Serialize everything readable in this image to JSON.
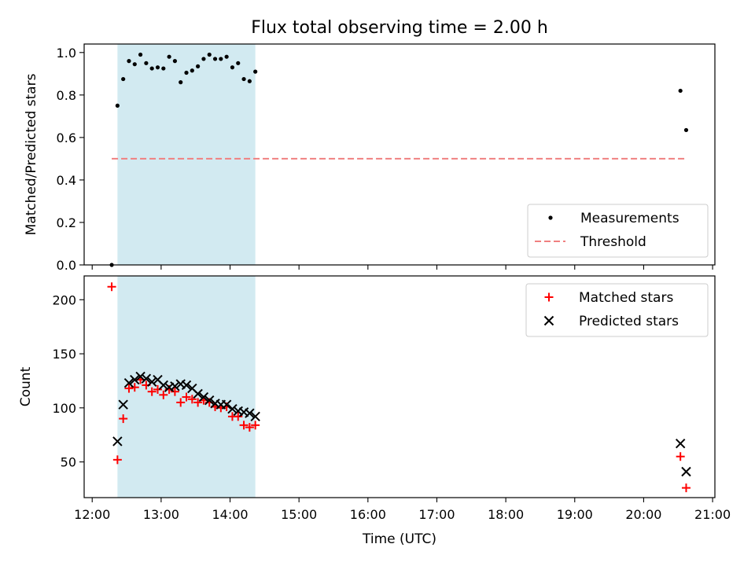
{
  "chart_data": [
    {
      "type": "scatter",
      "title": "Flux total observing time = 2.00 h",
      "xlabel": "",
      "ylabel": "Matched/Predicted stars",
      "ylim": [
        0,
        1.04
      ],
      "yticks": [
        0.0,
        0.2,
        0.4,
        0.6,
        0.8,
        1.0
      ],
      "ytick_labels": [
        "0.0",
        "0.2",
        "0.4",
        "0.6",
        "0.8",
        "1.0"
      ],
      "shaded_interval": [
        "12:22",
        "14:22"
      ],
      "shade_color": "#add8e6",
      "legend_position": "lower right",
      "series": [
        {
          "name": "Measurements",
          "marker": "dot",
          "color": "#000000",
          "points": [
            [
              "12:17",
              0.0
            ],
            [
              "12:22",
              0.75
            ],
            [
              "12:27",
              0.875
            ],
            [
              "12:32",
              0.96
            ],
            [
              "12:37",
              0.945
            ],
            [
              "12:42",
              0.99
            ],
            [
              "12:47",
              0.95
            ],
            [
              "12:52",
              0.925
            ],
            [
              "12:57",
              0.93
            ],
            [
              "13:02",
              0.925
            ],
            [
              "13:07",
              0.98
            ],
            [
              "13:12",
              0.96
            ],
            [
              "13:17",
              0.86
            ],
            [
              "13:22",
              0.905
            ],
            [
              "13:27",
              0.915
            ],
            [
              "13:32",
              0.935
            ],
            [
              "13:37",
              0.97
            ],
            [
              "13:42",
              0.99
            ],
            [
              "13:47",
              0.97
            ],
            [
              "13:52",
              0.97
            ],
            [
              "13:57",
              0.98
            ],
            [
              "14:02",
              0.93
            ],
            [
              "14:07",
              0.95
            ],
            [
              "14:12",
              0.875
            ],
            [
              "14:17",
              0.865
            ],
            [
              "14:22",
              0.91
            ],
            [
              "20:32",
              0.82
            ],
            [
              "20:37",
              0.635
            ]
          ]
        },
        {
          "name": "Threshold",
          "marker": "dashed-line",
          "color": "#f08080",
          "points": [
            [
              "12:17",
              0.5
            ],
            [
              "20:37",
              0.5
            ]
          ]
        }
      ]
    },
    {
      "type": "scatter",
      "title": "",
      "xlabel": "Time (UTC)",
      "ylabel": "Count",
      "ylim": [
        17,
        222
      ],
      "yticks": [
        50,
        100,
        150,
        200
      ],
      "ytick_labels": [
        "50",
        "100",
        "150",
        "200"
      ],
      "xlim": [
        "11:53",
        "21:02"
      ],
      "xticks": [
        "12:00",
        "13:00",
        "14:00",
        "15:00",
        "16:00",
        "17:00",
        "18:00",
        "19:00",
        "20:00",
        "21:00"
      ],
      "shaded_interval": [
        "12:22",
        "14:22"
      ],
      "shade_color": "#add8e6",
      "legend_position": "upper right",
      "series": [
        {
          "name": "Matched stars",
          "marker": "plus",
          "color": "#ff0000",
          "points": [
            [
              "12:17",
              212
            ],
            [
              "12:22",
              52
            ],
            [
              "12:27",
              90
            ],
            [
              "12:32",
              118
            ],
            [
              "12:37",
              119
            ],
            [
              "12:42",
              126
            ],
            [
              "12:47",
              121
            ],
            [
              "12:52",
              115
            ],
            [
              "12:57",
              117
            ],
            [
              "13:02",
              112
            ],
            [
              "13:07",
              117
            ],
            [
              "13:12",
              115
            ],
            [
              "13:17",
              105
            ],
            [
              "13:22",
              110
            ],
            [
              "13:27",
              108
            ],
            [
              "13:32",
              105
            ],
            [
              "13:37",
              107
            ],
            [
              "13:42",
              105
            ],
            [
              "13:47",
              101
            ],
            [
              "13:52",
              100
            ],
            [
              "13:57",
              101
            ],
            [
              "14:02",
              92
            ],
            [
              "14:07",
              92
            ],
            [
              "14:12",
              84
            ],
            [
              "14:17",
              82
            ],
            [
              "14:22",
              84
            ],
            [
              "20:32",
              55
            ],
            [
              "20:37",
              26
            ]
          ]
        },
        {
          "name": "Predicted stars",
          "marker": "x",
          "color": "#000000",
          "points": [
            [
              "12:22",
              69
            ],
            [
              "12:27",
              103
            ],
            [
              "12:32",
              123
            ],
            [
              "12:37",
              126
            ],
            [
              "12:42",
              129
            ],
            [
              "12:47",
              127
            ],
            [
              "12:52",
              124
            ],
            [
              "12:57",
              126
            ],
            [
              "13:02",
              121
            ],
            [
              "13:07",
              119
            ],
            [
              "13:12",
              120
            ],
            [
              "13:17",
              122
            ],
            [
              "13:22",
              121
            ],
            [
              "13:27",
              118
            ],
            [
              "13:32",
              113
            ],
            [
              "13:37",
              110
            ],
            [
              "13:42",
              107
            ],
            [
              "13:47",
              104
            ],
            [
              "13:52",
              103
            ],
            [
              "13:57",
              103
            ],
            [
              "14:02",
              99
            ],
            [
              "14:07",
              97
            ],
            [
              "14:12",
              96
            ],
            [
              "14:17",
              95
            ],
            [
              "14:22",
              92
            ],
            [
              "20:32",
              67
            ],
            [
              "20:37",
              41
            ]
          ]
        }
      ]
    }
  ]
}
